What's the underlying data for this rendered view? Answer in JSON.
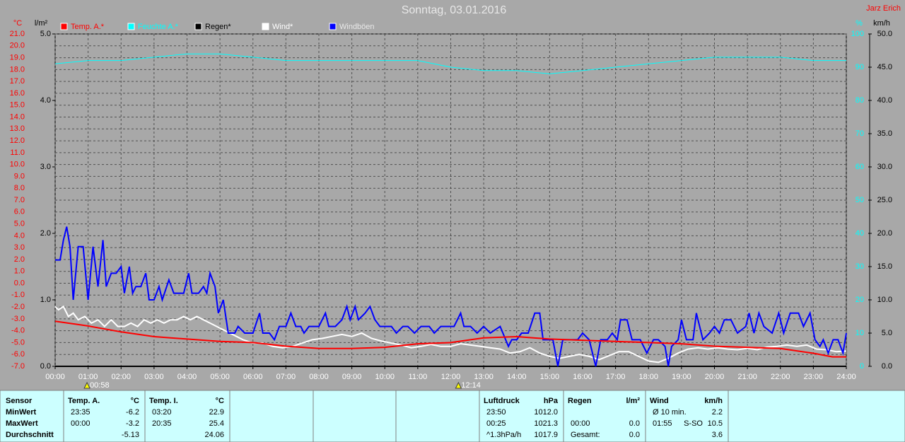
{
  "chart_data": {
    "type": "line",
    "title": "Sonntag, 03.01.2016",
    "station": "Jarz Erich",
    "xlim": [
      0,
      24
    ],
    "xticks": [
      {
        "value": 0,
        "label": "00:00"
      },
      {
        "value": 1,
        "label": "01:00"
      },
      {
        "value": 2,
        "label": "02:00"
      },
      {
        "value": 3,
        "label": "03:00"
      },
      {
        "value": 4,
        "label": "04:00"
      },
      {
        "value": 5,
        "label": "05:00"
      },
      {
        "value": 6,
        "label": "06:00"
      },
      {
        "value": 7,
        "label": "07:00"
      },
      {
        "value": 8,
        "label": "08:00"
      },
      {
        "value": 9,
        "label": "09:00"
      },
      {
        "value": 10,
        "label": "10:00"
      },
      {
        "value": 11,
        "label": "11:00"
      },
      {
        "value": 12,
        "label": "12:00"
      },
      {
        "value": 13,
        "label": "13:00"
      },
      {
        "value": 14,
        "label": "14:00"
      },
      {
        "value": 15,
        "label": "15:00"
      },
      {
        "value": 16,
        "label": "16:00"
      },
      {
        "value": 17,
        "label": "17:00"
      },
      {
        "value": 18,
        "label": "18:00"
      },
      {
        "value": 19,
        "label": "19:00"
      },
      {
        "value": 20,
        "label": "20:00"
      },
      {
        "value": 21,
        "label": "21:00"
      },
      {
        "value": 22,
        "label": "22:00"
      },
      {
        "value": 23,
        "label": "23:00"
      },
      {
        "value": 24,
        "label": "24:00"
      }
    ],
    "grid": true,
    "time_marks": [
      {
        "value": 0.9667,
        "label": "00:58"
      },
      {
        "value": 12.2333,
        "label": "12:14"
      }
    ],
    "axes": {
      "temp": {
        "label": "°C",
        "color": "#ff0000",
        "lim": [
          -7,
          21
        ],
        "ticks": [
          {
            "value": -7,
            "label": "-7.0"
          },
          {
            "value": -6,
            "label": "-6.0"
          },
          {
            "value": -5,
            "label": "-5.0"
          },
          {
            "value": -4,
            "label": "-4.0"
          },
          {
            "value": -3,
            "label": "-3.0"
          },
          {
            "value": -2,
            "label": "-2.0"
          },
          {
            "value": -1,
            "label": "-1.0"
          },
          {
            "value": 0,
            "label": "0.0"
          },
          {
            "value": 1,
            "label": "1.0"
          },
          {
            "value": 2,
            "label": "2.0"
          },
          {
            "value": 3,
            "label": "3.0"
          },
          {
            "value": 4,
            "label": "4.0"
          },
          {
            "value": 5,
            "label": "5.0"
          },
          {
            "value": 6,
            "label": "6.0"
          },
          {
            "value": 7,
            "label": "7.0"
          },
          {
            "value": 8,
            "label": "8.0"
          },
          {
            "value": 9,
            "label": "9.0"
          },
          {
            "value": 10,
            "label": "10.0"
          },
          {
            "value": 11,
            "label": "11.0"
          },
          {
            "value": 12,
            "label": "12.0"
          },
          {
            "value": 13,
            "label": "13.0"
          },
          {
            "value": 14,
            "label": "14.0"
          },
          {
            "value": 15,
            "label": "15.0"
          },
          {
            "value": 16,
            "label": "16.0"
          },
          {
            "value": 17,
            "label": "17.0"
          },
          {
            "value": 18,
            "label": "18.0"
          },
          {
            "value": 19,
            "label": "19.0"
          },
          {
            "value": 20,
            "label": "20.0"
          },
          {
            "value": 21,
            "label": "21.0"
          }
        ]
      },
      "rain": {
        "label": "l/m²",
        "color": "#000000",
        "lim": [
          0,
          5
        ],
        "ticks": [
          {
            "value": 0,
            "label": "0.0"
          },
          {
            "value": 1,
            "label": "1.0"
          },
          {
            "value": 2,
            "label": "2.0"
          },
          {
            "value": 3,
            "label": "3.0"
          },
          {
            "value": 4,
            "label": "4.0"
          },
          {
            "value": 5,
            "label": "5.0"
          }
        ]
      },
      "humidity": {
        "label": "%",
        "color": "#00ffff",
        "lim": [
          0,
          100
        ],
        "ticks": [
          0,
          10,
          20,
          30,
          40,
          50,
          60,
          70,
          80,
          90,
          100
        ]
      },
      "wind": {
        "label": "km/h",
        "color": "#000000",
        "lim": [
          0,
          50
        ],
        "ticks": [
          {
            "value": 0,
            "label": "0.0"
          },
          {
            "value": 5,
            "label": "5.0"
          },
          {
            "value": 10,
            "label": "10.0"
          },
          {
            "value": 15,
            "label": "15.0"
          },
          {
            "value": 20,
            "label": "20.0"
          },
          {
            "value": 25,
            "label": "25.0"
          },
          {
            "value": 30,
            "label": "30.0"
          },
          {
            "value": 35,
            "label": "35.0"
          },
          {
            "value": 40,
            "label": "40.0"
          },
          {
            "value": 45,
            "label": "45.0"
          },
          {
            "value": 50,
            "label": "50.0"
          }
        ]
      }
    },
    "series": [
      {
        "name": "Temp. A.*",
        "color": "#ff0000",
        "axis": "temp",
        "x": [
          0,
          1,
          2,
          3,
          4,
          5,
          6,
          7,
          8,
          9,
          10,
          11,
          12,
          13,
          14,
          15,
          16,
          17,
          18,
          19,
          20,
          21,
          22,
          23,
          23.58,
          24
        ],
        "values": [
          -3.2,
          -3.6,
          -4.1,
          -4.5,
          -4.7,
          -4.9,
          -5.0,
          -5.3,
          -5.5,
          -5.5,
          -5.4,
          -5.1,
          -5.0,
          -4.6,
          -4.5,
          -4.7,
          -4.8,
          -4.9,
          -5.0,
          -5.1,
          -5.3,
          -5.4,
          -5.5,
          -5.9,
          -6.2,
          -6.2
        ]
      },
      {
        "name": "Feuchte A.*",
        "color": "#00ffff",
        "axis": "humidity",
        "x": [
          0,
          1,
          2,
          3,
          4,
          5,
          6,
          7,
          8,
          9,
          10,
          11,
          12,
          13,
          14,
          15,
          16,
          17,
          18,
          19,
          20,
          21,
          22,
          23,
          24
        ],
        "values": [
          91,
          92,
          92,
          93,
          94,
          94,
          93,
          92,
          92,
          92,
          92,
          92,
          90,
          89,
          89,
          88,
          89,
          90,
          91,
          92,
          93,
          93,
          93,
          92,
          92
        ]
      },
      {
        "name": "Regen*",
        "color": "#000000",
        "axis": "rain",
        "x": [
          0,
          24
        ],
        "values": [
          0,
          0
        ]
      },
      {
        "name": "Wind*",
        "color": "#ffffff",
        "axis": "wind",
        "x": [
          0,
          0.1,
          0.25,
          0.4,
          0.55,
          0.7,
          0.9,
          1.1,
          1.3,
          1.5,
          1.7,
          1.9,
          2.1,
          2.3,
          2.5,
          2.7,
          2.9,
          3.1,
          3.3,
          3.5,
          3.7,
          3.9,
          4.1,
          4.3,
          4.5,
          4.7,
          4.9,
          5.1,
          5.3,
          5.5,
          5.7,
          6,
          6.3,
          6.6,
          6.9,
          7.2,
          7.5,
          7.8,
          8.1,
          8.4,
          8.7,
          9,
          9.3,
          9.6,
          9.9,
          10.2,
          10.5,
          10.8,
          11.1,
          11.4,
          11.7,
          12,
          12.3,
          12.6,
          12.9,
          13.2,
          13.5,
          13.8,
          14.1,
          14.4,
          14.7,
          15,
          15.3,
          15.6,
          15.9,
          16.2,
          16.5,
          16.8,
          17.1,
          17.4,
          17.7,
          18,
          18.3,
          18.6,
          18.9,
          19.2,
          19.5,
          19.8,
          20.1,
          20.4,
          20.7,
          21,
          21.3,
          21.6,
          21.9,
          22.2,
          22.5,
          22.8,
          23.1,
          23.4,
          23.7,
          24
        ],
        "values": [
          9,
          8.5,
          9,
          7.5,
          8,
          7,
          7.5,
          6.5,
          7,
          6,
          7,
          6,
          6,
          6.5,
          6,
          7,
          6.5,
          7,
          6.5,
          7,
          7,
          7.5,
          7,
          7.5,
          7,
          6.5,
          6,
          5.5,
          5,
          4.5,
          4,
          3.5,
          3.5,
          3,
          2.8,
          3,
          3.5,
          4,
          4.2,
          4.5,
          4.8,
          4.5,
          5,
          4.2,
          3.8,
          3.5,
          3.2,
          2.8,
          3,
          3.3,
          3,
          3,
          3.4,
          3.2,
          3,
          2.8,
          2.6,
          2,
          2.2,
          2.8,
          2,
          1.5,
          1.2,
          1.5,
          1.8,
          1.5,
          1,
          1.6,
          2.2,
          2.2,
          1.5,
          0.8,
          0.6,
          1.2,
          2,
          2.6,
          2.8,
          2.6,
          2.8,
          2.6,
          2.5,
          2.7,
          2.5,
          2.9,
          3,
          3.2,
          3,
          3.2,
          2.6,
          2.5,
          2.2,
          2.3
        ]
      },
      {
        "name": "Windböen",
        "color": "#0000ff",
        "axis": "wind",
        "x": [
          0,
          0.15,
          0.25,
          0.35,
          0.45,
          0.55,
          0.7,
          0.85,
          1,
          1.15,
          1.3,
          1.45,
          1.55,
          1.7,
          1.85,
          2,
          2.1,
          2.25,
          2.35,
          2.45,
          2.6,
          2.75,
          2.85,
          3,
          3.15,
          3.25,
          3.45,
          3.6,
          3.75,
          3.9,
          4.05,
          4.15,
          4.35,
          4.5,
          4.6,
          4.7,
          4.85,
          4.95,
          5.1,
          5.25,
          5.45,
          5.55,
          5.75,
          6,
          6.2,
          6.3,
          6.5,
          6.65,
          6.8,
          7,
          7.15,
          7.3,
          7.45,
          7.55,
          7.7,
          8,
          8.2,
          8.3,
          8.5,
          8.7,
          8.85,
          8.95,
          9.1,
          9.2,
          9.4,
          9.55,
          9.7,
          9.85,
          10,
          10.2,
          10.35,
          10.55,
          10.7,
          10.9,
          11.1,
          11.35,
          11.5,
          11.7,
          11.85,
          12.1,
          12.3,
          12.4,
          12.6,
          12.8,
          13,
          13.2,
          13.5,
          13.75,
          13.85,
          14,
          14.15,
          14.35,
          14.55,
          14.7,
          14.8,
          15.1,
          15.25,
          15.4,
          15.6,
          15.85,
          16,
          16.2,
          16.4,
          16.55,
          16.75,
          16.9,
          17.05,
          17.15,
          17.35,
          17.5,
          17.75,
          17.95,
          18.15,
          18.3,
          18.5,
          18.6,
          18.7,
          18.9,
          19,
          19.15,
          19.35,
          19.45,
          19.65,
          19.85,
          20,
          20.15,
          20.3,
          20.5,
          20.7,
          20.95,
          21.05,
          21.2,
          21.35,
          21.5,
          21.75,
          21.95,
          22.1,
          22.3,
          22.55,
          22.7,
          22.9,
          23.05,
          23.2,
          23.3,
          23.45,
          23.6,
          23.75,
          23.9,
          24
        ],
        "values": [
          16,
          16,
          19,
          21,
          18,
          10,
          18,
          18,
          10,
          18,
          12,
          19,
          12,
          14,
          14,
          15,
          11,
          15,
          11,
          12,
          12,
          14,
          10,
          10,
          12,
          10,
          13,
          11,
          11,
          11,
          14,
          11,
          11,
          12,
          11,
          14,
          12,
          8,
          10,
          5,
          5,
          6,
          5,
          5,
          8,
          5,
          5,
          4,
          6,
          6,
          8,
          6,
          6,
          5,
          6,
          6,
          8,
          6,
          6,
          7,
          9,
          7,
          9,
          7,
          8,
          9,
          7,
          6,
          6,
          6,
          5,
          6,
          6,
          5,
          6,
          6,
          5,
          6,
          6,
          6,
          8,
          6,
          6,
          5,
          6,
          5,
          6,
          3,
          4,
          4,
          5,
          5,
          8,
          8,
          4,
          4,
          0,
          4,
          4,
          4,
          5,
          4,
          0,
          4,
          4,
          5,
          4,
          7,
          7,
          4,
          4,
          2,
          4,
          4,
          3,
          0,
          3,
          4,
          7,
          4,
          4,
          8,
          4,
          5,
          6,
          5,
          7,
          7,
          5,
          6,
          8,
          5,
          8,
          6,
          5,
          8,
          5,
          8,
          8,
          6,
          8,
          4,
          3,
          4,
          2,
          4,
          4,
          2,
          5
        ]
      }
    ]
  },
  "stats": {
    "row_labels": [
      "Sensor",
      "MinWert",
      "MaxWert",
      "Durchschnitt"
    ],
    "columns": [
      {
        "title": "Temp. A.",
        "unit": "°C",
        "rows": [
          [
            "23:35",
            "-6.2"
          ],
          [
            "00:00",
            "-3.2"
          ],
          [
            "-5.13"
          ]
        ]
      },
      {
        "title": "Temp. I.",
        "unit": "°C",
        "rows": [
          [
            "03:20",
            "22.9"
          ],
          [
            "20:35",
            "25.4"
          ],
          [
            "24.06"
          ]
        ]
      },
      {
        "title": "Luftdruck",
        "unit": "hPa",
        "rows": [
          [
            "23:50",
            "1012.0"
          ],
          [
            "00:25",
            "1021.3"
          ],
          [
            "^1.3hPa/h",
            "1017.9"
          ]
        ]
      },
      {
        "title": "Regen",
        "unit": "l/m²",
        "rows": [
          [],
          [
            "00:00",
            "0.0"
          ],
          [
            "Gesamt:",
            "0.0"
          ]
        ]
      },
      {
        "title": "Wind",
        "unit": "km/h",
        "rows": [
          [
            "Ø 10 min.",
            "2.2"
          ],
          [
            "01:55",
            "S-SO",
            "10.5"
          ],
          [
            "3.6"
          ]
        ]
      }
    ]
  }
}
